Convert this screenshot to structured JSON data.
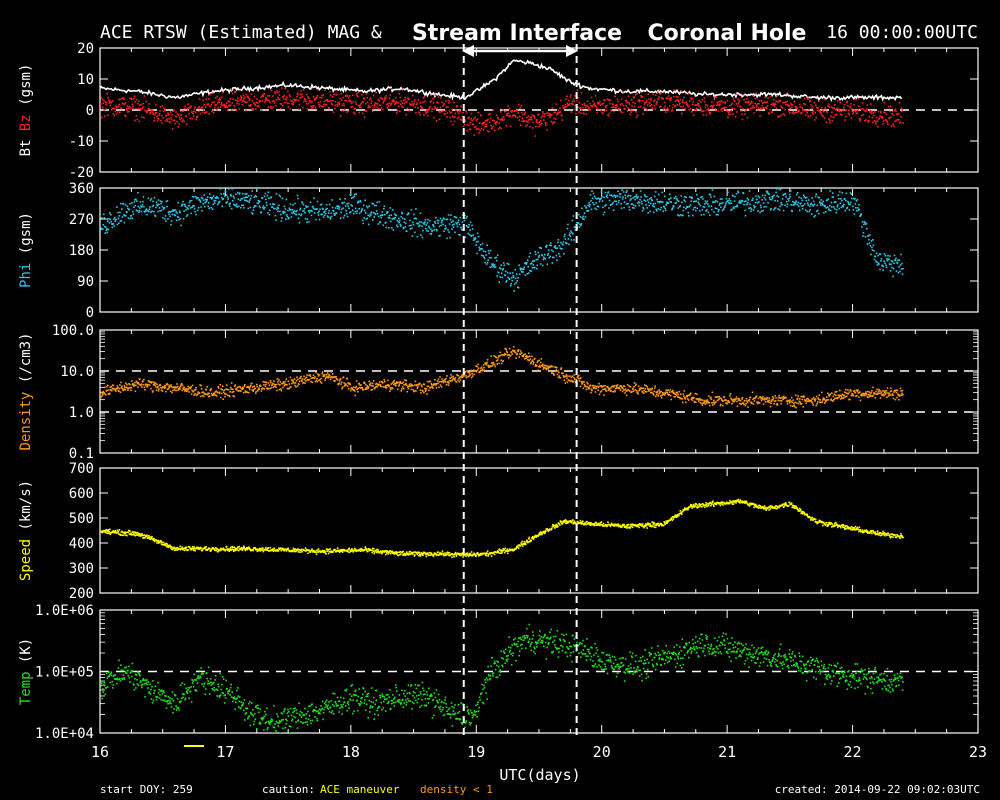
{
  "header": {
    "title_left": "ACE RTSW (Estimated) MAG &",
    "title_right": "16 00:00:00UTC",
    "annotation_stream": "Stream Interface",
    "annotation_hole": "Coronal Hole"
  },
  "footer": {
    "start_doy": "start DOY: 259",
    "caution_label": "caution:",
    "caution_maneuver": "ACE maneuver",
    "caution_density": "density < 1",
    "created": "created: 2014-09-22 09:02:03UTC"
  },
  "colors": {
    "bz": "#ff2020",
    "bt": "#ffffff",
    "phi": "#2ec9e8",
    "density": "#ff9a1a",
    "speed": "#ffff00",
    "temp": "#22e022",
    "frame": "#ffffff",
    "background": "#000000"
  },
  "chart_data": {
    "type": "scatter",
    "title": "ACE RTSW (Estimated) MAG &",
    "x_axis": {
      "label": "UTC(days)",
      "range": [
        16,
        23
      ],
      "ticks": [
        "16",
        "17",
        "18",
        "19",
        "20",
        "21",
        "22",
        "23"
      ]
    },
    "markers": [
      {
        "x": 18.9,
        "label": "Stream Interface"
      },
      {
        "x": 19.8,
        "label": ""
      }
    ],
    "panels": [
      {
        "id": "mag",
        "ylabel_parts": [
          {
            "text": "Bt",
            "color": "#ffffff"
          },
          {
            "text": "Bz",
            "color": "#ff2020"
          },
          {
            "text": "(gsm)",
            "color": "#ffffff"
          }
        ],
        "scale": "linear",
        "yrange": [
          -20,
          20
        ],
        "ticks": [
          {
            "v": 20,
            "l": "20"
          },
          {
            "v": 10,
            "l": "10"
          },
          {
            "v": 0,
            "l": "0"
          },
          {
            "v": -10,
            "l": "-10"
          },
          {
            "v": -20,
            "l": "-20"
          }
        ],
        "dashed_levels": [
          0
        ],
        "series": [
          {
            "name": "Bt",
            "color": "#ffffff",
            "style": "line",
            "spread": 0.6,
            "x": [
              16.0,
              16.3,
              16.6,
              16.9,
              17.2,
              17.5,
              17.8,
              18.1,
              18.4,
              18.7,
              18.9,
              19.0,
              19.15,
              19.3,
              19.45,
              19.6,
              19.75,
              19.9,
              20.2,
              20.5,
              20.8,
              21.1,
              21.4,
              21.7,
              22.0,
              22.4
            ],
            "y": [
              7,
              6,
              4,
              6,
              7,
              8,
              7,
              6,
              7,
              5,
              4,
              6,
              10,
              16,
              15,
              13,
              9,
              7,
              6,
              6,
              5,
              5,
              5,
              4,
              4,
              4
            ]
          },
          {
            "name": "Bz",
            "color": "#ff2020",
            "style": "scatter",
            "spread": 3,
            "x": [
              16.0,
              16.3,
              16.6,
              16.9,
              17.2,
              17.5,
              17.8,
              18.1,
              18.4,
              18.7,
              18.9,
              19.0,
              19.15,
              19.3,
              19.45,
              19.6,
              19.75,
              19.9,
              20.2,
              20.5,
              20.8,
              21.1,
              21.4,
              21.7,
              22.0,
              22.4
            ],
            "y": [
              2,
              1,
              -3,
              2,
              3,
              4,
              3,
              2,
              3,
              1,
              -2,
              -5,
              -3,
              0,
              -4,
              -2,
              3,
              1,
              2,
              3,
              2,
              1,
              2,
              0,
              0,
              -2
            ]
          }
        ]
      },
      {
        "id": "phi",
        "ylabel_parts": [
          {
            "text": "Phi",
            "color": "#2ec9e8"
          },
          {
            "text": "(gsm)",
            "color": "#ffffff"
          }
        ],
        "scale": "linear",
        "yrange": [
          0,
          360
        ],
        "ticks": [
          {
            "v": 360,
            "l": "360"
          },
          {
            "v": 270,
            "l": "270"
          },
          {
            "v": 180,
            "l": "180"
          },
          {
            "v": 90,
            "l": "90"
          },
          {
            "v": 0,
            "l": "0"
          }
        ],
        "dashed_levels": [],
        "series": [
          {
            "name": "Phi",
            "color": "#2ec9e8",
            "style": "scatter",
            "spread": 30,
            "x": [
              16.0,
              16.2,
              16.4,
              16.6,
              16.8,
              17.0,
              17.2,
              17.5,
              17.8,
              18.0,
              18.3,
              18.6,
              18.9,
              19.1,
              19.3,
              19.5,
              19.7,
              19.9,
              20.2,
              20.5,
              20.8,
              21.1,
              21.4,
              21.7,
              22.0,
              22.2,
              22.4
            ],
            "y": [
              250,
              300,
              310,
              290,
              320,
              330,
              320,
              300,
              290,
              310,
              280,
              250,
              260,
              150,
              100,
              160,
              200,
              320,
              330,
              320,
              310,
              320,
              330,
              310,
              330,
              150,
              140
            ]
          }
        ]
      },
      {
        "id": "density",
        "ylabel_parts": [
          {
            "text": "Density",
            "color": "#ff9a1a"
          },
          {
            "text": "(/cm3)",
            "color": "#ffffff"
          }
        ],
        "scale": "log",
        "yrange": [
          0.1,
          100
        ],
        "ticks": [
          {
            "v": 100,
            "l": "100.0"
          },
          {
            "v": 10,
            "l": "10.0"
          },
          {
            "v": 1,
            "l": "1.0"
          },
          {
            "v": 0.1,
            "l": "0.1"
          }
        ],
        "dashed_levels": [
          10,
          1
        ],
        "series": [
          {
            "name": "Density",
            "color": "#ff9a1a",
            "style": "scatter",
            "spread": 0.12,
            "x": [
              16.0,
              16.3,
              16.6,
              16.9,
              17.2,
              17.5,
              17.8,
              18.0,
              18.3,
              18.6,
              18.9,
              19.1,
              19.3,
              19.5,
              19.7,
              19.9,
              20.2,
              20.5,
              20.8,
              21.1,
              21.4,
              21.7,
              22.0,
              22.4
            ],
            "y": [
              3,
              5,
              4,
              3,
              4,
              5,
              8,
              4,
              5,
              4,
              8,
              15,
              30,
              15,
              8,
              4,
              4,
              3,
              2,
              2,
              2,
              2,
              3,
              3
            ]
          }
        ]
      },
      {
        "id": "speed",
        "ylabel_parts": [
          {
            "text": "Speed",
            "color": "#ffff00"
          },
          {
            "text": "(km/s)",
            "color": "#ffffff"
          }
        ],
        "scale": "linear",
        "yrange": [
          200,
          700
        ],
        "ticks": [
          {
            "v": 700,
            "l": "700"
          },
          {
            "v": 600,
            "l": "600"
          },
          {
            "v": 500,
            "l": "500"
          },
          {
            "v": 400,
            "l": "400"
          },
          {
            "v": 300,
            "l": "300"
          },
          {
            "v": 200,
            "l": "200"
          }
        ],
        "dashed_levels": [],
        "series": [
          {
            "name": "Speed",
            "color": "#ffff00",
            "style": "scatter",
            "spread": 8,
            "x": [
              16.0,
              16.3,
              16.6,
              16.9,
              17.2,
              17.5,
              17.8,
              18.1,
              18.4,
              18.7,
              18.9,
              19.1,
              19.3,
              19.5,
              19.7,
              19.9,
              20.2,
              20.5,
              20.7,
              20.9,
              21.1,
              21.3,
              21.5,
              21.7,
              22.0,
              22.2,
              22.4
            ],
            "y": [
              450,
              440,
              380,
              380,
              380,
              375,
              370,
              375,
              360,
              360,
              355,
              360,
              380,
              440,
              490,
              480,
              470,
              480,
              550,
              560,
              570,
              540,
              560,
              490,
              460,
              440,
              430
            ]
          }
        ]
      },
      {
        "id": "temp",
        "ylabel_parts": [
          {
            "text": "Temp",
            "color": "#22e022"
          },
          {
            "text": "(K)",
            "color": "#ffffff"
          }
        ],
        "scale": "log",
        "yrange": [
          10000,
          1000000
        ],
        "ticks": [
          {
            "v": 1000000,
            "l": "1.0E+06"
          },
          {
            "v": 100000,
            "l": "1.0E+05"
          },
          {
            "v": 10000,
            "l": "1.0E+04"
          }
        ],
        "dashed_levels": [
          100000
        ],
        "series": [
          {
            "name": "Temp",
            "color": "#22e022",
            "style": "scatter",
            "spread": 0.18,
            "x": [
              16.0,
              16.2,
              16.4,
              16.6,
              16.8,
              17.0,
              17.2,
              17.4,
              17.6,
              17.8,
              18.0,
              18.2,
              18.4,
              18.6,
              18.8,
              19.0,
              19.2,
              19.4,
              19.6,
              19.8,
              20.0,
              20.3,
              20.6,
              20.8,
              21.0,
              21.2,
              21.5,
              21.8,
              22.1,
              22.4
            ],
            "y": [
              60000,
              100000,
              50000,
              30000,
              80000,
              50000,
              20000,
              15000,
              20000,
              25000,
              40000,
              30000,
              40000,
              40000,
              20000,
              20000,
              150000,
              350000,
              300000,
              250000,
              150000,
              120000,
              200000,
              300000,
              250000,
              200000,
              150000,
              100000,
              80000,
              70000
            ]
          }
        ]
      }
    ]
  }
}
